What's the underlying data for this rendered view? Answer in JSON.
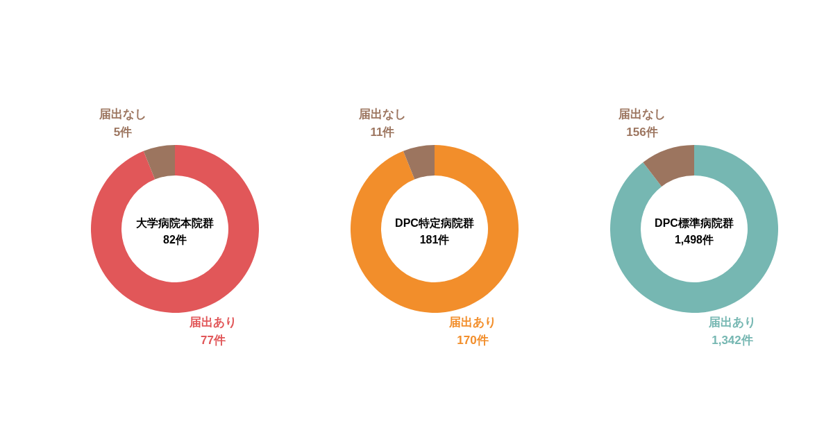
{
  "chart_data": [
    {
      "type": "donut",
      "title": "大学病院本院群",
      "subtitle": "82件",
      "categories": [
        "届出あり",
        "届出なし"
      ],
      "values": [
        77,
        5
      ],
      "colors": [
        "#e15759",
        "#9c755f"
      ],
      "value_labels": [
        "77件",
        "5件"
      ]
    },
    {
      "type": "donut",
      "title": "DPC特定病院群",
      "subtitle": "181件",
      "categories": [
        "届出あり",
        "届出なし"
      ],
      "values": [
        170,
        11
      ],
      "colors": [
        "#f28e2b",
        "#9c755f"
      ],
      "value_labels": [
        "170件",
        "11件"
      ]
    },
    {
      "type": "donut",
      "title": "DPC標準病院群",
      "subtitle": "1,498件",
      "categories": [
        "届出あり",
        "届出なし"
      ],
      "values": [
        1342,
        156
      ],
      "colors": [
        "#76b7b2",
        "#9c755f"
      ],
      "value_labels": [
        "1,342件",
        "156件"
      ]
    }
  ]
}
